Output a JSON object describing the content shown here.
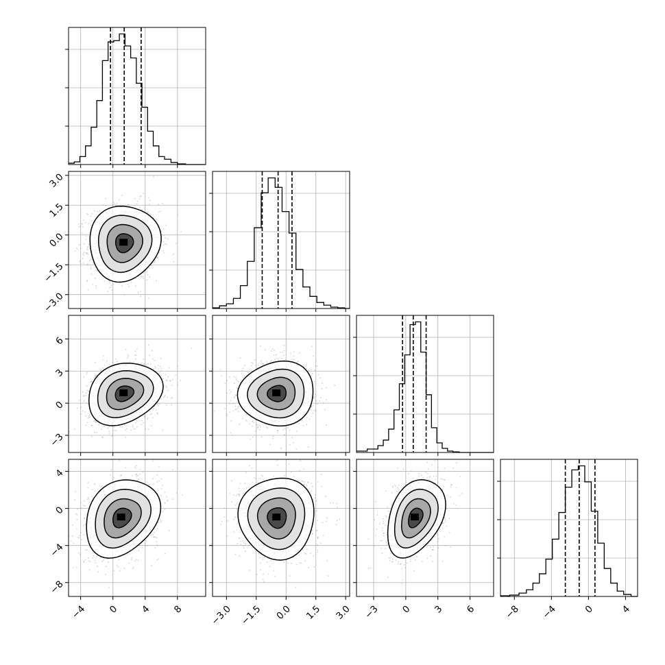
{
  "chart_data": {
    "type": "corner",
    "parameters": 4,
    "grid": true,
    "title": "",
    "axes": [
      {
        "range": [
          -5.5,
          11.5
        ],
        "ticks": [
          -4,
          0,
          4,
          8
        ],
        "tick_labels": [
          "−4",
          "0",
          "4",
          "8"
        ]
      },
      {
        "range": [
          -3.7,
          3.2
        ],
        "ticks": [
          -3.0,
          -1.5,
          0.0,
          1.5,
          3.0
        ],
        "tick_labels": [
          "−3.0",
          "−1.5",
          "0.0",
          "1.5",
          "3.0"
        ]
      },
      {
        "range": [
          -4.6,
          8.2
        ],
        "ticks": [
          -3,
          0,
          3,
          6
        ],
        "tick_labels": [
          "−3",
          "0",
          "3",
          "6"
        ]
      },
      {
        "range": [
          -9.5,
          5.3
        ],
        "ticks": [
          -8,
          -4,
          0,
          4
        ],
        "tick_labels": [
          "−8",
          "−4",
          "0",
          "4"
        ]
      }
    ],
    "marginals": [
      {
        "parameter": 0,
        "quantiles": [
          -0.3,
          1.4,
          3.5
        ],
        "bins": [
          -5.5,
          -4.8,
          -4.1,
          -3.4,
          -2.7,
          -2.0,
          -1.3,
          -0.6,
          0.1,
          0.8,
          1.5,
          2.2,
          2.9,
          3.6,
          4.3,
          5.0,
          5.7,
          6.4,
          7.2,
          8.0,
          9.0,
          11.5
        ],
        "counts": [
          0.01,
          0.02,
          0.06,
          0.14,
          0.28,
          0.48,
          0.78,
          0.92,
          0.93,
          0.98,
          0.89,
          0.8,
          0.61,
          0.43,
          0.25,
          0.14,
          0.06,
          0.04,
          0.015,
          0.005,
          0.0
        ]
      },
      {
        "parameter": 1,
        "quantiles": [
          -1.2,
          -0.4,
          0.3
        ],
        "bins": [
          -3.7,
          -3.35,
          -3.0,
          -2.65,
          -2.3,
          -1.95,
          -1.6,
          -1.25,
          -0.9,
          -0.55,
          -0.2,
          0.15,
          0.5,
          0.85,
          1.2,
          1.55,
          1.9,
          2.25,
          2.6,
          2.95,
          3.2
        ],
        "counts": [
          0.005,
          0.02,
          0.035,
          0.075,
          0.17,
          0.35,
          0.6,
          0.86,
          0.97,
          0.9,
          0.72,
          0.56,
          0.29,
          0.16,
          0.09,
          0.045,
          0.025,
          0.01,
          0.005,
          0.0
        ]
      },
      {
        "parameter": 2,
        "quantiles": [
          -0.3,
          0.7,
          1.9
        ],
        "bins": [
          -4.6,
          -3.6,
          -2.6,
          -2.1,
          -1.6,
          -1.1,
          -0.6,
          -0.1,
          0.4,
          0.9,
          1.4,
          1.9,
          2.4,
          2.9,
          3.4,
          3.9,
          4.4,
          5.0,
          8.2
        ],
        "counts": [
          0.01,
          0.025,
          0.05,
          0.09,
          0.17,
          0.31,
          0.5,
          0.71,
          0.93,
          0.95,
          0.73,
          0.42,
          0.18,
          0.07,
          0.03,
          0.01,
          0.004,
          0.0
        ]
      },
      {
        "parameter": 3,
        "quantiles": [
          -2.5,
          -1.0,
          0.7
        ],
        "bins": [
          -9.5,
          -8.5,
          -7.5,
          -6.7,
          -6.0,
          -5.3,
          -4.6,
          -3.9,
          -3.2,
          -2.5,
          -1.8,
          -1.1,
          -0.4,
          0.3,
          1.0,
          1.7,
          2.4,
          3.1,
          3.8,
          4.6,
          5.3
        ],
        "counts": [
          0.005,
          0.01,
          0.025,
          0.05,
          0.1,
          0.17,
          0.28,
          0.43,
          0.63,
          0.82,
          0.95,
          0.98,
          0.86,
          0.64,
          0.4,
          0.21,
          0.1,
          0.04,
          0.015,
          0.0
        ]
      }
    ],
    "pairs": [
      {
        "x": 0,
        "y": 1,
        "mean": [
          1.4,
          -0.4
        ],
        "sd": [
          2.2,
          0.95
        ],
        "rho": 0.05
      },
      {
        "x": 0,
        "y": 2,
        "mean": [
          1.4,
          0.9
        ],
        "sd": [
          2.3,
          1.45
        ],
        "rho": 0.22
      },
      {
        "x": 1,
        "y": 2,
        "mean": [
          -0.45,
          0.9
        ],
        "sd": [
          0.95,
          1.5
        ],
        "rho": 0.05
      },
      {
        "x": 0,
        "y": 3,
        "mean": [
          1.1,
          -1.0
        ],
        "sd": [
          2.3,
          2.1
        ],
        "rho": 0.25
      },
      {
        "x": 1,
        "y": 3,
        "mean": [
          -0.45,
          -1.0
        ],
        "sd": [
          0.95,
          2.2
        ],
        "rho": 0.0
      },
      {
        "x": 2,
        "y": 3,
        "mean": [
          0.9,
          -1.0
        ],
        "sd": [
          1.35,
          2.1
        ],
        "rho": 0.35
      }
    ]
  }
}
